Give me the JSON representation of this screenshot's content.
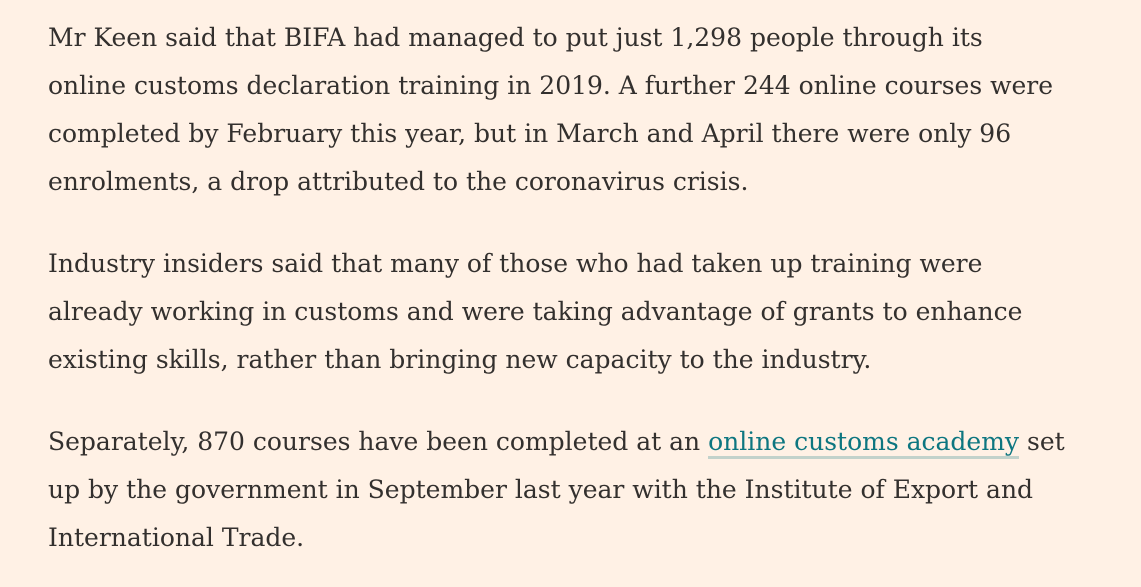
{
  "colors": {
    "background": "#fff1e5",
    "text": "#33302e",
    "link": "#0d7680"
  },
  "article": {
    "paragraph_1": {
      "lines": [
        "Mr Keen said that BIFA had managed to put just 1,298 people through its",
        "online customs declaration training in 2019. A further 244 online courses were",
        "completed by February this year, but in March and April there were only 96",
        "enrolments, a drop attributed to the coronavirus crisis."
      ]
    },
    "paragraph_2": {
      "lines": [
        "Industry insiders said that many of those who had taken up training were",
        "already working in customs and were taking advantage of grants to enhance",
        "existing skills, rather than bringing new capacity to the industry."
      ]
    },
    "paragraph_3": {
      "line_1_before_link": "Separately, 870 courses have been completed at an ",
      "link_text": "online customs academy",
      "line_1_after_link": " set",
      "lines_rest": [
        "up by the government in September last year with the Institute of Export and",
        "International Trade."
      ]
    }
  }
}
